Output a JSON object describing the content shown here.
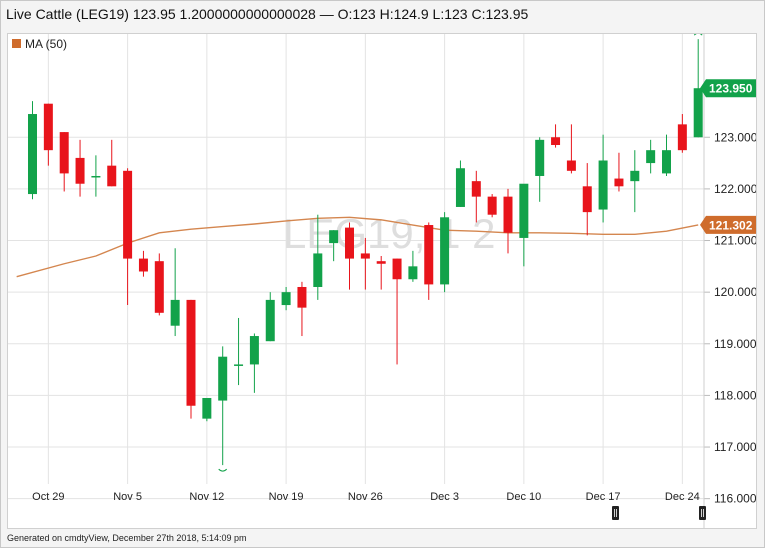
{
  "header": {
    "title": "Live Cattle (LEG19) 123.95 1.2000000000000028 — O:123 H:124.9 L:123 C:123.95"
  },
  "footer": {
    "text": "Generated on cmdtyView, December 27th 2018, 5:14:09 pm"
  },
  "watermark": "LEG19, 1 2",
  "colors": {
    "up": "#12a24a",
    "down": "#e8141b",
    "ma": "#d4864f",
    "grid": "#e3e3e3",
    "last_price_bg": "#12a24a",
    "ma_badge_bg": "#cf6c2c"
  },
  "chart_data": {
    "type": "candlestick",
    "legend": [
      {
        "label": "MA (50)",
        "color": "#cf6c2c"
      }
    ],
    "ylim": [
      115.8,
      125.0
    ],
    "y_ticks": [
      116.0,
      117.0,
      118.0,
      119.0,
      120.0,
      121.0,
      122.0,
      123.0
    ],
    "y_tick_labels": [
      "116.000",
      "117.000",
      "118.000",
      "119.000",
      "120.000",
      "121.000",
      "122.000",
      "123.000"
    ],
    "x_ticks": [
      "Oct 29",
      "Nov 5",
      "Nov 12",
      "Nov 19",
      "Nov 26",
      "Dec 3",
      "Dec 10",
      "Dec 17",
      "Dec 24"
    ],
    "x_tick_positions": [
      1,
      6,
      11,
      16,
      21,
      26,
      31,
      36,
      41
    ],
    "last_price_label": "123.950",
    "ma_value_label": "121.302",
    "candles": [
      {
        "i": 0,
        "o": 121.9,
        "h": 123.7,
        "l": 121.8,
        "c": 123.45
      },
      {
        "i": 1,
        "o": 123.65,
        "h": 123.65,
        "l": 122.45,
        "c": 122.75
      },
      {
        "i": 2,
        "o": 123.1,
        "h": 123.1,
        "l": 121.95,
        "c": 122.3
      },
      {
        "i": 3,
        "o": 122.6,
        "h": 122.95,
        "l": 121.85,
        "c": 122.1
      },
      {
        "i": 4,
        "o": 122.25,
        "h": 122.65,
        "l": 121.85,
        "c": 122.25
      },
      {
        "i": 5,
        "o": 122.45,
        "h": 122.95,
        "l": 122.05,
        "c": 122.05
      },
      {
        "i": 6,
        "o": 122.35,
        "h": 122.4,
        "l": 119.75,
        "c": 120.65
      },
      {
        "i": 7,
        "o": 120.65,
        "h": 120.8,
        "l": 120.3,
        "c": 120.4
      },
      {
        "i": 8,
        "o": 120.6,
        "h": 120.75,
        "l": 119.55,
        "c": 119.6
      },
      {
        "i": 9,
        "o": 119.35,
        "h": 120.85,
        "l": 119.15,
        "c": 119.85
      },
      {
        "i": 10,
        "o": 119.85,
        "h": 119.85,
        "l": 117.55,
        "c": 117.8
      },
      {
        "i": 11,
        "o": 117.55,
        "h": 117.95,
        "l": 117.5,
        "c": 117.95
      },
      {
        "i": 12,
        "o": 117.9,
        "h": 118.95,
        "l": 116.65,
        "c": 118.75
      },
      {
        "i": 13,
        "o": 118.6,
        "h": 119.5,
        "l": 118.2,
        "c": 118.6
      },
      {
        "i": 14,
        "o": 118.6,
        "h": 119.2,
        "l": 118.05,
        "c": 119.15
      },
      {
        "i": 15,
        "o": 119.05,
        "h": 120.0,
        "l": 119.05,
        "c": 119.85
      },
      {
        "i": 16,
        "o": 119.75,
        "h": 120.1,
        "l": 119.65,
        "c": 120.0
      },
      {
        "i": 17,
        "o": 120.1,
        "h": 120.2,
        "l": 119.15,
        "c": 119.7
      },
      {
        "i": 18,
        "o": 120.1,
        "h": 121.5,
        "l": 119.85,
        "c": 120.75
      },
      {
        "i": 19,
        "o": 120.95,
        "h": 121.2,
        "l": 120.6,
        "c": 121.2
      },
      {
        "i": 20,
        "o": 121.25,
        "h": 121.35,
        "l": 120.05,
        "c": 120.65
      },
      {
        "i": 21,
        "o": 120.75,
        "h": 121.05,
        "l": 120.05,
        "c": 120.65
      },
      {
        "i": 22,
        "o": 120.6,
        "h": 120.7,
        "l": 120.05,
        "c": 120.55
      },
      {
        "i": 23,
        "o": 120.65,
        "h": 120.65,
        "l": 118.6,
        "c": 120.25
      },
      {
        "i": 24,
        "o": 120.25,
        "h": 120.8,
        "l": 120.2,
        "c": 120.5
      },
      {
        "i": 25,
        "o": 121.3,
        "h": 121.35,
        "l": 119.85,
        "c": 120.15
      },
      {
        "i": 26,
        "o": 120.15,
        "h": 121.55,
        "l": 120.0,
        "c": 121.45
      },
      {
        "i": 27,
        "o": 121.65,
        "h": 122.55,
        "l": 121.65,
        "c": 122.4
      },
      {
        "i": 28,
        "o": 122.15,
        "h": 122.35,
        "l": 121.35,
        "c": 121.85
      },
      {
        "i": 29,
        "o": 121.85,
        "h": 121.9,
        "l": 121.45,
        "c": 121.5
      },
      {
        "i": 30,
        "o": 121.85,
        "h": 122.0,
        "l": 120.75,
        "c": 121.15
      },
      {
        "i": 31,
        "o": 121.05,
        "h": 122.05,
        "l": 120.5,
        "c": 122.1
      },
      {
        "i": 32,
        "o": 122.25,
        "h": 123.0,
        "l": 121.75,
        "c": 122.95
      },
      {
        "i": 33,
        "o": 123.0,
        "h": 123.25,
        "l": 122.8,
        "c": 122.85
      },
      {
        "i": 34,
        "o": 122.55,
        "h": 123.25,
        "l": 122.3,
        "c": 122.35
      },
      {
        "i": 35,
        "o": 122.05,
        "h": 122.5,
        "l": 121.1,
        "c": 121.55
      },
      {
        "i": 36,
        "o": 121.6,
        "h": 123.05,
        "l": 121.35,
        "c": 122.55
      },
      {
        "i": 37,
        "o": 122.2,
        "h": 122.7,
        "l": 121.95,
        "c": 122.05
      },
      {
        "i": 38,
        "o": 122.15,
        "h": 122.75,
        "l": 121.55,
        "c": 122.35
      },
      {
        "i": 39,
        "o": 122.5,
        "h": 122.95,
        "l": 122.3,
        "c": 122.75
      },
      {
        "i": 40,
        "o": 122.3,
        "h": 123.05,
        "l": 122.25,
        "c": 122.75
      },
      {
        "i": 41,
        "o": 123.25,
        "h": 123.45,
        "l": 122.7,
        "c": 122.75
      },
      {
        "i": 42,
        "o": 123.0,
        "h": 124.9,
        "l": 123.0,
        "c": 123.95
      }
    ],
    "ma_50": [
      {
        "i": -1,
        "v": 120.3
      },
      {
        "i": 2,
        "v": 120.55
      },
      {
        "i": 4,
        "v": 120.7
      },
      {
        "i": 6,
        "v": 120.95
      },
      {
        "i": 8,
        "v": 121.15
      },
      {
        "i": 10,
        "v": 121.22
      },
      {
        "i": 12,
        "v": 121.27
      },
      {
        "i": 14,
        "v": 121.32
      },
      {
        "i": 16,
        "v": 121.38
      },
      {
        "i": 18,
        "v": 121.43
      },
      {
        "i": 20,
        "v": 121.45
      },
      {
        "i": 22,
        "v": 121.4
      },
      {
        "i": 24,
        "v": 121.3
      },
      {
        "i": 26,
        "v": 121.2
      },
      {
        "i": 28,
        "v": 121.18
      },
      {
        "i": 30,
        "v": 121.15
      },
      {
        "i": 32,
        "v": 121.15
      },
      {
        "i": 34,
        "v": 121.14
      },
      {
        "i": 36,
        "v": 121.12
      },
      {
        "i": 38,
        "v": 121.12
      },
      {
        "i": 40,
        "v": 121.18
      },
      {
        "i": 42,
        "v": 121.302
      }
    ]
  }
}
